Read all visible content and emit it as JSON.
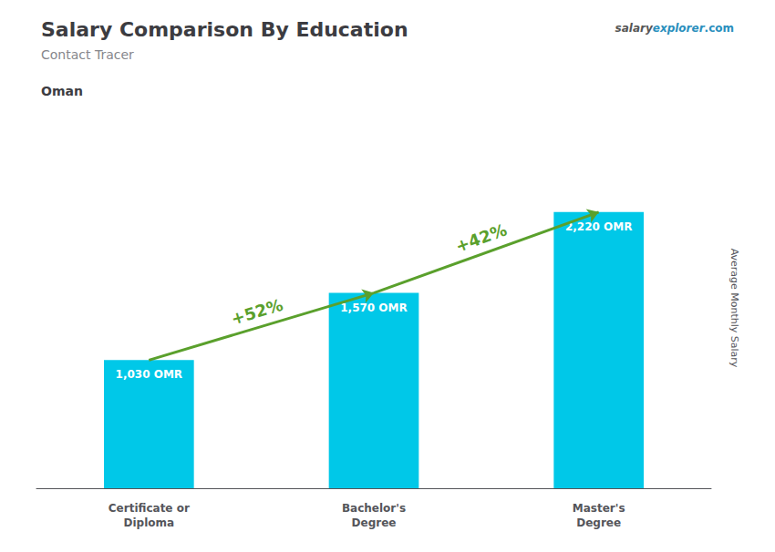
{
  "chart_data": {
    "type": "bar",
    "title": "Salary Comparison By Education",
    "subtitle": "Contact Tracer",
    "annotations": [
      "Oman",
      "+52%",
      "+42%",
      "salary",
      "explorer",
      ".com"
    ],
    "ylabel": "Average Monthly Salary",
    "categories": [
      "Certificate or\nDiploma",
      "Bachelor's\nDegree",
      "Master's\nDegree"
    ],
    "values": [
      1030,
      1570,
      2220
    ],
    "value_labels": [
      "1,030 OMR",
      "1,570 OMR",
      "2,220 OMR"
    ],
    "data_labels": true,
    "color": "#00c8e8",
    "ylim": [
      0,
      2900
    ],
    "yticks": [],
    "grid": false,
    "tick_labels": "x"
  }
}
